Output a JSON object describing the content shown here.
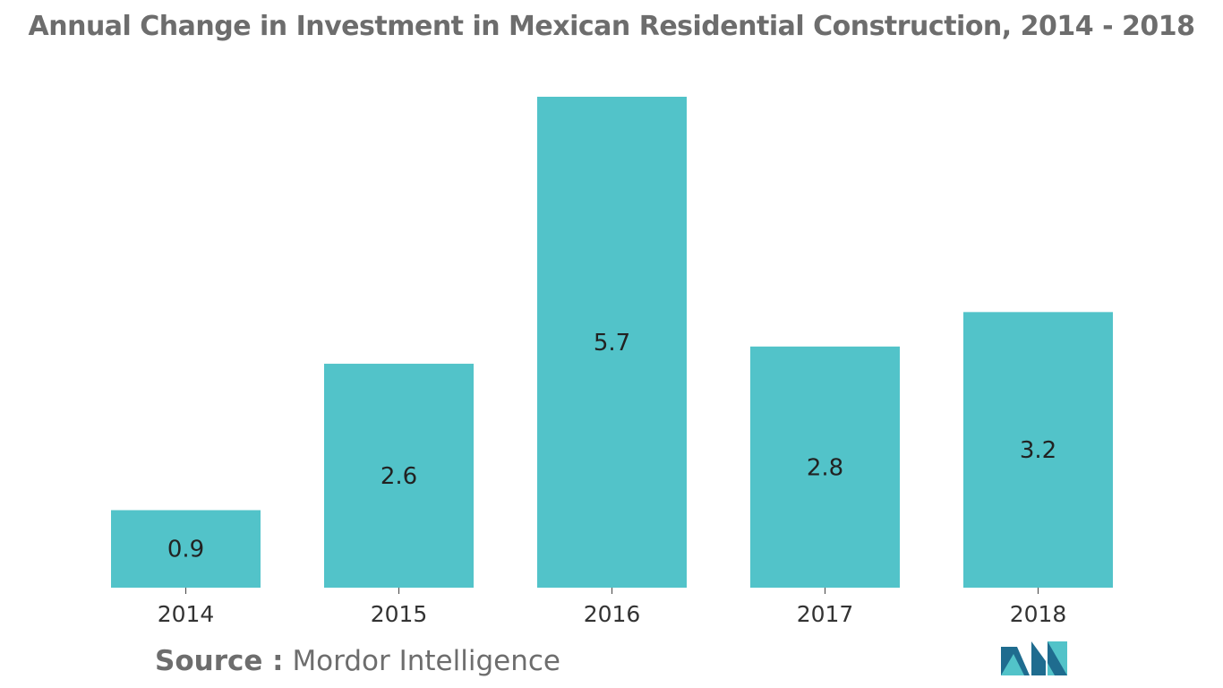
{
  "title": "Annual Change in Investment in Mexican Residential Construction, 2014 - 2018",
  "source": {
    "label": "Source :",
    "value": "Mordor Intelligence"
  },
  "colors": {
    "bar": "#52c3c9",
    "title": "#6d6d6d",
    "logo_dark": "#1f6c8f",
    "logo_light": "#52c3c9"
  },
  "chart_data": {
    "type": "bar",
    "title": "Annual Change in Investment in Mexican Residential Construction, 2014 - 2018",
    "xlabel": "",
    "ylabel": "",
    "categories": [
      "2014",
      "2015",
      "2016",
      "2017",
      "2018"
    ],
    "values": [
      0.9,
      2.6,
      5.7,
      2.8,
      3.2
    ],
    "value_labels": [
      "0.9",
      "2.6",
      "5.7",
      "2.8",
      "3.2"
    ],
    "ylim": [
      0,
      5.7
    ],
    "grid": false,
    "legend": "none",
    "data_labels": "inside-center"
  }
}
